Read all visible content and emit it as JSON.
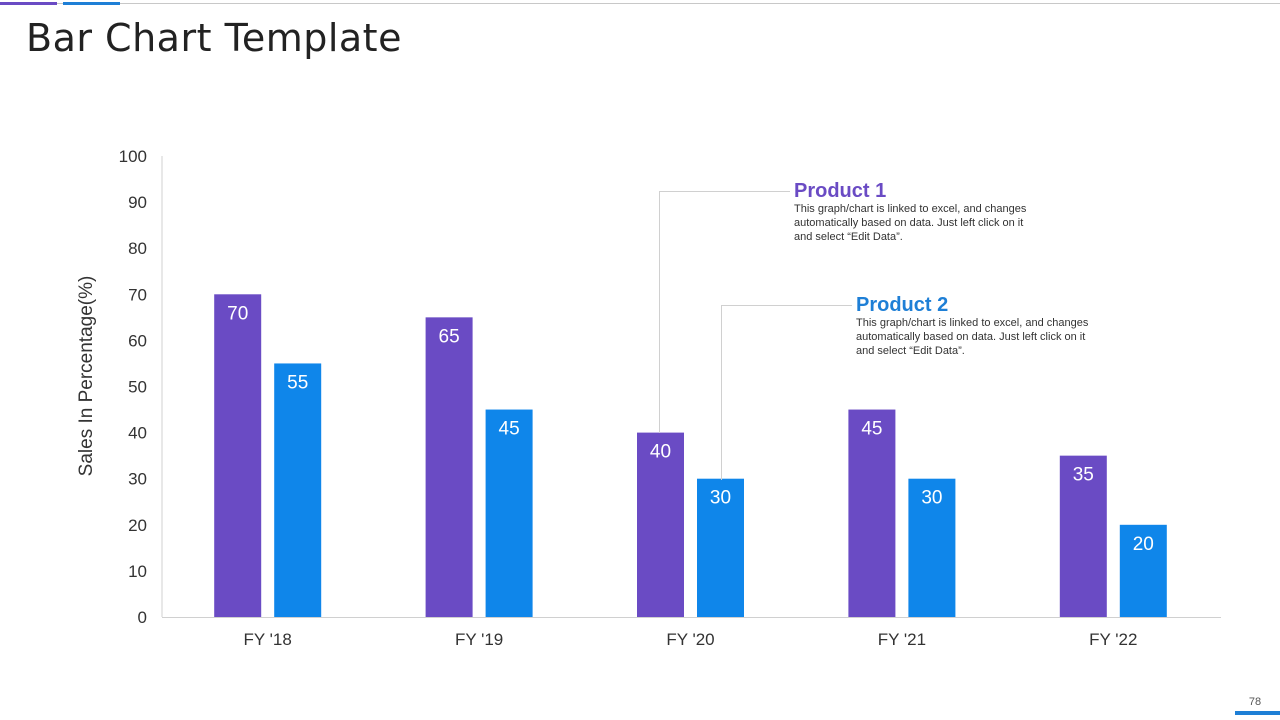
{
  "header": {
    "title": "Bar Chart Template"
  },
  "footer": {
    "page_number": "78"
  },
  "colors": {
    "product1": "#6a4bc4",
    "product2": "#0f86ea",
    "accent_line_1": "#6a4bc4",
    "accent_line_2": "#1e7fd6"
  },
  "callouts": [
    {
      "title": "Product 1",
      "description": "This graph/chart is linked to excel, and changes automatically based on data. Just left click on it and select “Edit Data”."
    },
    {
      "title": "Product 2",
      "description": "This graph/chart is linked to excel, and changes automatically based on data. Just left click on it and select “Edit Data”."
    }
  ],
  "chart_data": {
    "type": "bar",
    "title": "",
    "xlabel": "",
    "ylabel": "Sales In Percentage(%)",
    "ylim": [
      0,
      100
    ],
    "yticks": [
      0,
      10,
      20,
      30,
      40,
      50,
      60,
      70,
      80,
      90,
      100
    ],
    "grid": false,
    "categories": [
      "FY '18",
      "FY '19",
      "FY '20",
      "FY '21",
      "FY '22"
    ],
    "series": [
      {
        "name": "Product 1",
        "values": [
          70,
          65,
          40,
          45,
          35
        ]
      },
      {
        "name": "Product 2",
        "values": [
          55,
          45,
          30,
          30,
          20
        ]
      }
    ],
    "data_labels": true
  }
}
